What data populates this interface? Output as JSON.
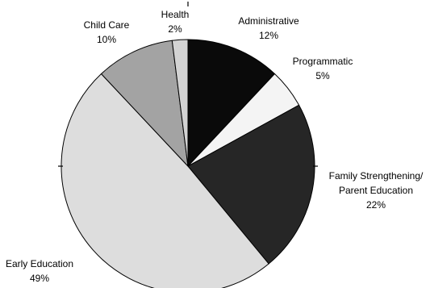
{
  "chart_data": {
    "type": "pie",
    "title": "",
    "start": "top",
    "direction": "clockwise",
    "slices": [
      {
        "name": "Administrative",
        "value": 12,
        "label": "12%",
        "color": "#0a0a0a"
      },
      {
        "name": "Programmatic",
        "value": 5,
        "label": "5%",
        "color": "#f4f4f4"
      },
      {
        "name": "Family Strengthening/ Parent Education",
        "value": 22,
        "label": "22%",
        "color": "#262626"
      },
      {
        "name": "Early Education",
        "value": 49,
        "label": "49%",
        "color": "#dddddd"
      },
      {
        "name": "Child Care",
        "value": 10,
        "label": "10%",
        "color": "#a3a3a3"
      },
      {
        "name": "Health",
        "value": 2,
        "label": "2%",
        "color": "#d3d3d3"
      }
    ]
  }
}
